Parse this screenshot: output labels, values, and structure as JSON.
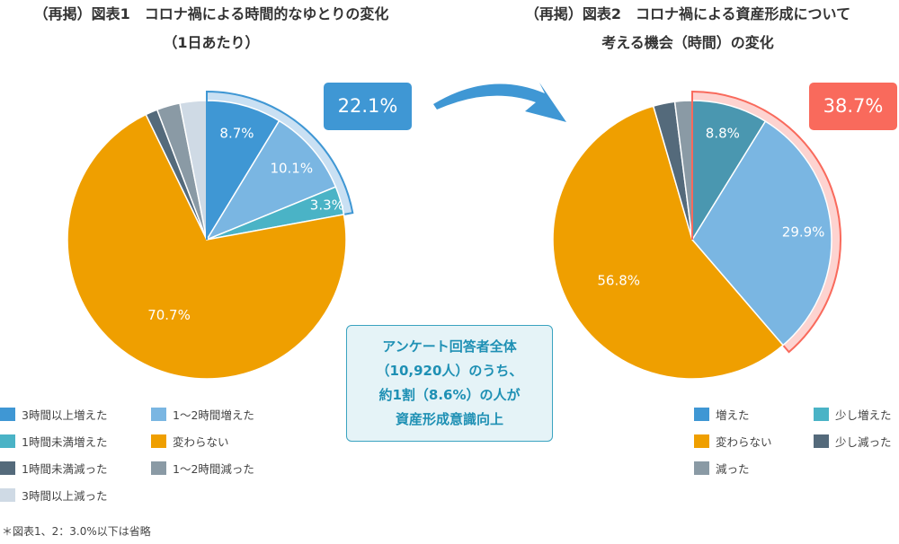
{
  "chart_data": [
    {
      "type": "pie",
      "title": "（再掲）図表1　コロナ禍による時間的なゆとりの変化",
      "subtitle": "（1日あたり）",
      "slices": [
        {
          "name": "3時間以上増えた",
          "value": 8.7,
          "label": "8.7%",
          "color": "#3f97d4",
          "highlight": true
        },
        {
          "name": "1〜2時間増えた",
          "value": 10.1,
          "label": "10.1%",
          "color": "#7ab6e2",
          "highlight": true
        },
        {
          "name": "1時間未満増えた",
          "value": 3.3,
          "label": "3.3%",
          "color": "#4ab3c6",
          "highlight": true
        },
        {
          "name": "変わらない",
          "value": 70.7,
          "label": "70.7%",
          "color": "#ef9f00"
        },
        {
          "name": "1時間未満減った",
          "value": 1.4,
          "label": "",
          "color": "#546a7b"
        },
        {
          "name": "1〜2時間減った",
          "value": 2.7,
          "label": "",
          "color": "#8a9aa5"
        },
        {
          "name": "3時間以上減った",
          "value": 3.1,
          "label": "",
          "color": "#cfdae5"
        }
      ],
      "highlight_total": "22.1%",
      "highlight_color": "#3f97d4",
      "ring_color": "#c9e0f3",
      "legend": [
        {
          "name": "3時間以上増えた",
          "color": "#3f97d4"
        },
        {
          "name": "1〜2時間増えた",
          "color": "#7ab6e2"
        },
        {
          "name": "1時間未満増えた",
          "color": "#4ab3c6"
        },
        {
          "name": "変わらない",
          "color": "#ef9f00"
        },
        {
          "name": "1時間未満減った",
          "color": "#546a7b"
        },
        {
          "name": "1〜2時間減った",
          "color": "#8a9aa5"
        },
        {
          "name": "3時間以上減った",
          "color": "#cfdae5"
        }
      ]
    },
    {
      "type": "pie",
      "title": "（再掲）図表2　コロナ禍による資産形成について",
      "subtitle": "考える機会（時間）の変化",
      "slices": [
        {
          "name": "増えた",
          "value": 8.8,
          "label": "8.8%",
          "color": "#4a97b0",
          "highlight": true
        },
        {
          "name": "少し増えた",
          "value": 29.9,
          "label": "29.9%",
          "color": "#7ab6e2",
          "highlight": true
        },
        {
          "name": "変わらない",
          "value": 56.8,
          "label": "56.8%",
          "color": "#ef9f00"
        },
        {
          "name": "少し減った",
          "value": 2.5,
          "label": "",
          "color": "#546a7b"
        },
        {
          "name": "減った",
          "value": 2.0,
          "label": "",
          "color": "#8a9aa5"
        }
      ],
      "highlight_total": "38.7%",
      "highlight_color": "#f96a5c",
      "ring_color": "#fdd3d0",
      "legend": [
        {
          "name": "増えた",
          "color": "#3f97d4"
        },
        {
          "name": "少し増えた",
          "color": "#4ab3c6"
        },
        {
          "name": "変わらない",
          "color": "#ef9f00"
        },
        {
          "name": "少し減った",
          "color": "#546a7b"
        },
        {
          "name": "減った",
          "color": "#8a9aa5"
        }
      ]
    }
  ],
  "callout": {
    "lines": [
      "アンケート回答者全体",
      "（10,920人）のうち、",
      "約1割（8.6%）の人が",
      "資産形成意識向上"
    ]
  },
  "note": "＊図表1、2：3.0%以下は省略"
}
